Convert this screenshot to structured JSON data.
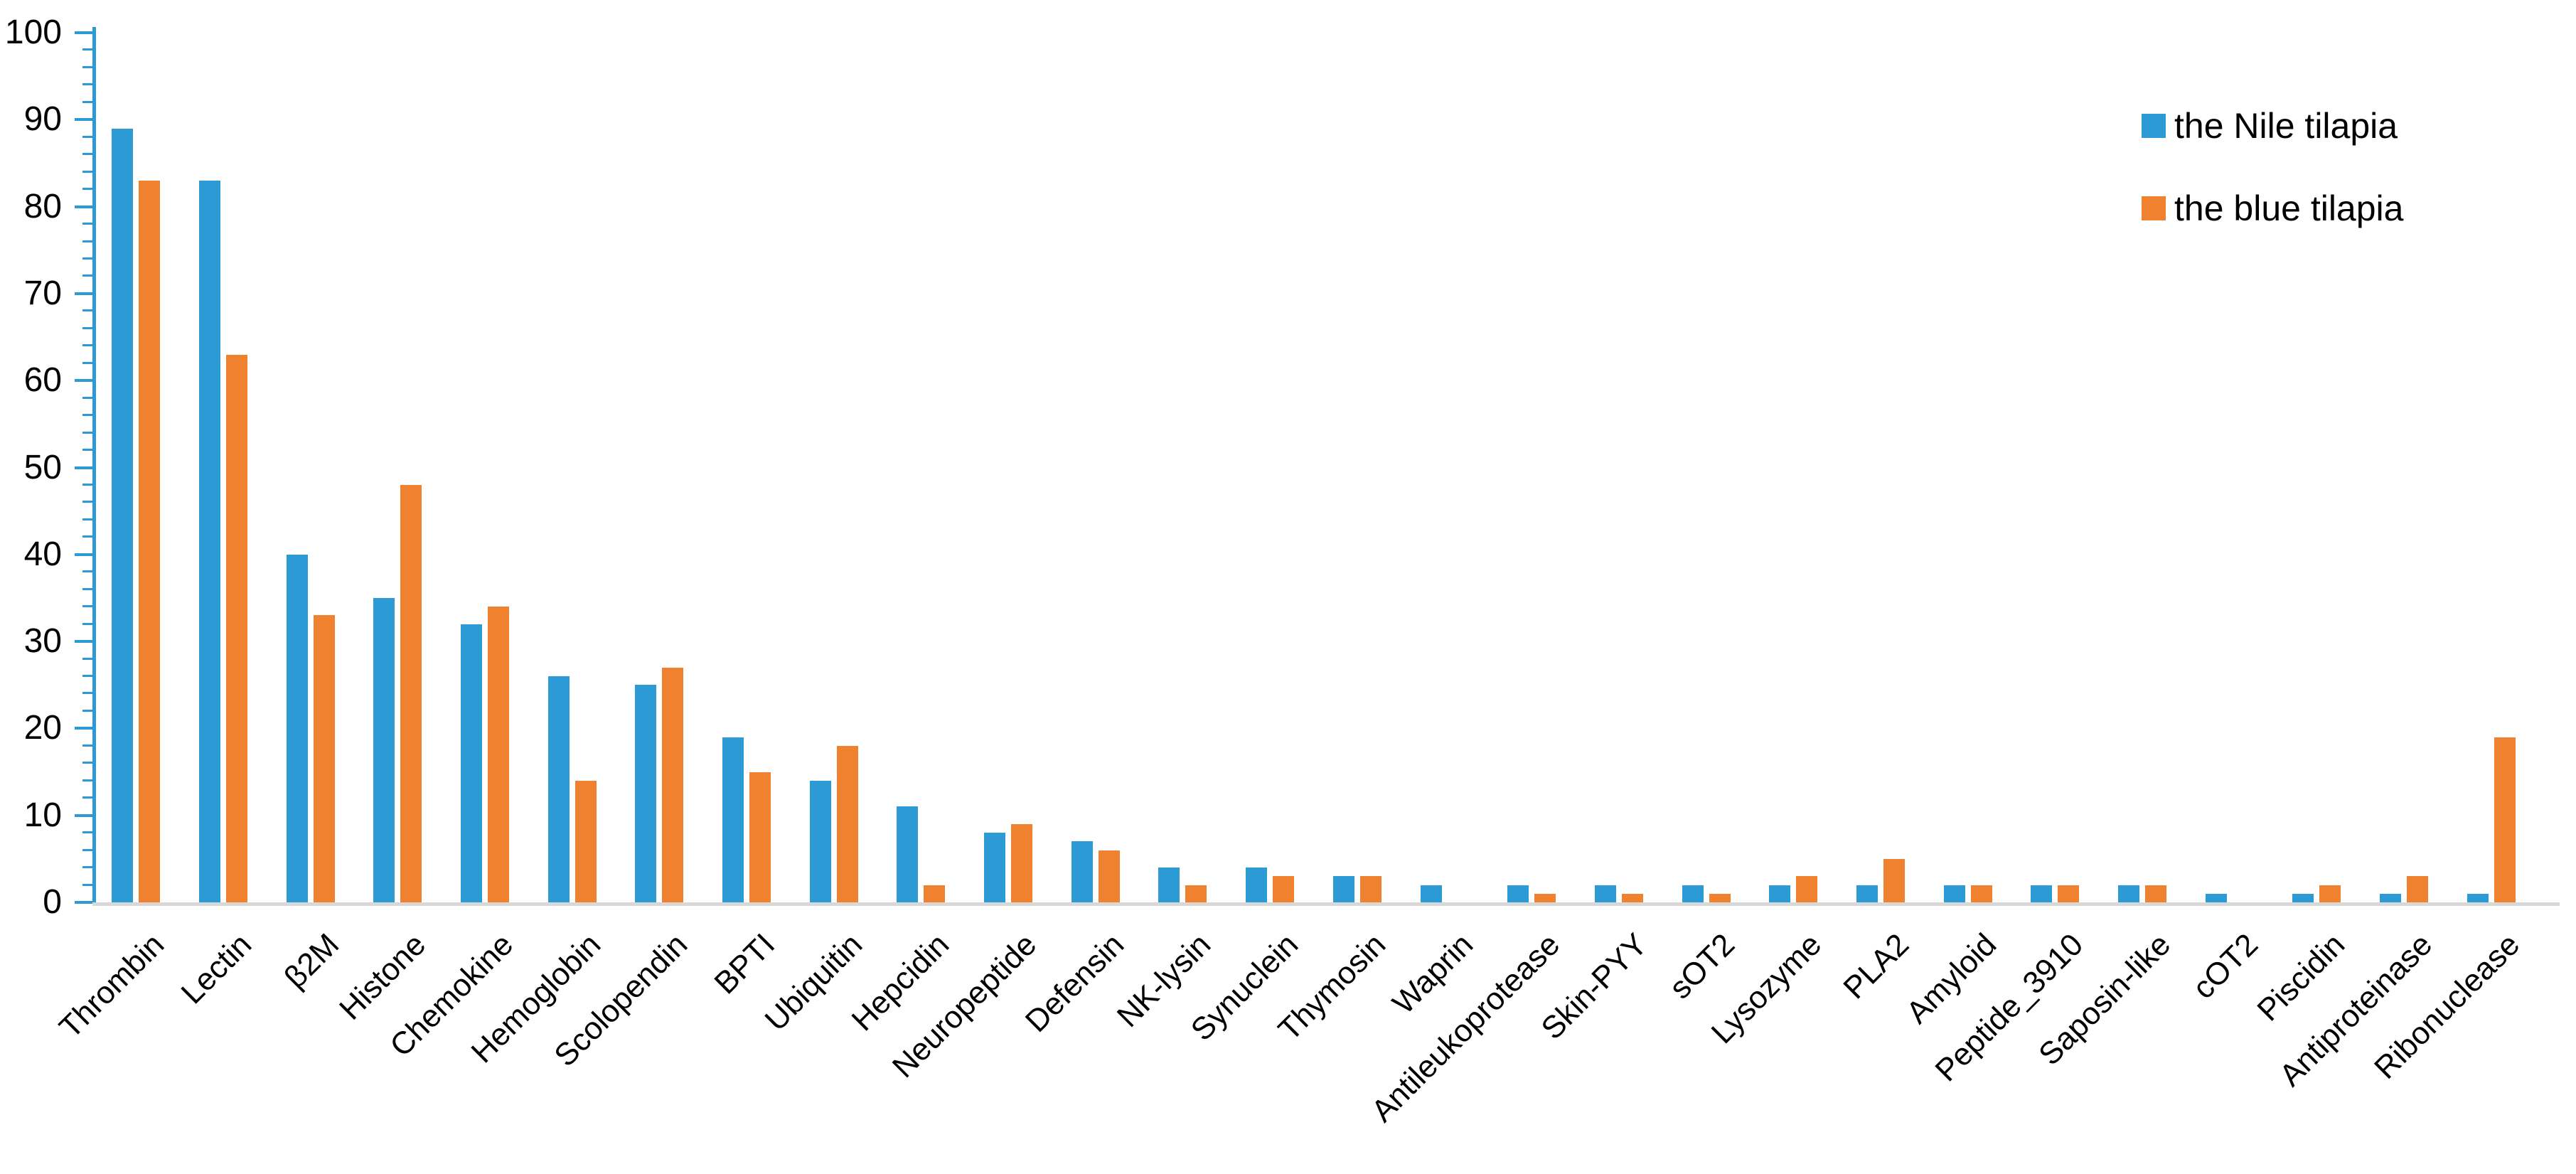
{
  "legend": {
    "series1_label": "the Nile tilapia",
    "series2_label": "the blue tilapia"
  },
  "colors": {
    "series1": "#2c9ad4",
    "series2": "#f0812f",
    "axis": "#2c9ad4",
    "baseline": "#d8d8d8",
    "text": "#000000"
  },
  "chart_data": {
    "type": "bar",
    "title": "",
    "xlabel": "",
    "ylabel": "",
    "ylim": [
      0,
      100
    ],
    "ytick_step": 10,
    "minor_tick_step": 2,
    "grid": false,
    "legend_position": "top-right",
    "categories": [
      "Thrombin",
      "Lectin",
      "β2M",
      "Histone",
      "Chemokine",
      "Hemoglobin",
      "Scolopendin",
      "BPTI",
      "Ubiquitin",
      "Hepcidin",
      "Neuropeptide",
      "Defensin",
      "NK-lysin",
      "Synuclein",
      "Thymosin",
      "Waprin",
      "Antileukoprotease",
      "Skin-PYY",
      "sOT2",
      "Lysozyme",
      "PLA2",
      "Amyloid",
      "Peptide_3910",
      "Saposin-like",
      "cOT2",
      "Piscidin",
      "Antiproteinase",
      "Ribonuclease"
    ],
    "series": [
      {
        "name": "the Nile tilapia",
        "color": "#2c9ad4",
        "values": [
          89,
          83,
          40,
          35,
          32,
          26,
          25,
          19,
          14,
          11,
          8,
          7,
          4,
          4,
          3,
          2,
          2,
          2,
          2,
          2,
          2,
          2,
          2,
          2,
          1,
          1,
          1,
          1
        ]
      },
      {
        "name": "the blue tilapia",
        "color": "#f0812f",
        "values": [
          83,
          63,
          33,
          48,
          34,
          14,
          27,
          15,
          18,
          2,
          9,
          6,
          2,
          3,
          3,
          0,
          1,
          1,
          1,
          3,
          5,
          2,
          2,
          2,
          0,
          2,
          3,
          19
        ]
      }
    ]
  }
}
